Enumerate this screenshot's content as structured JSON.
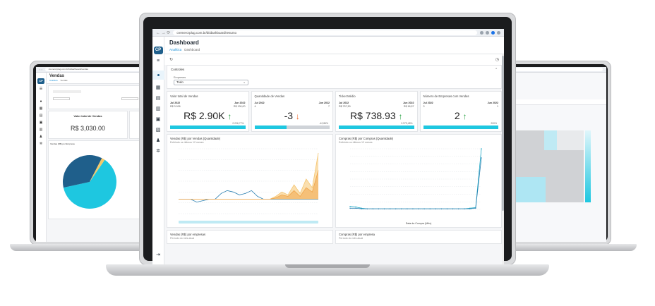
{
  "center": {
    "url": "cremercrplug.com.br/bi/dashboard/resumo",
    "title": "Dashboard",
    "breadcrumb": [
      "Analítica",
      "Dashboard"
    ],
    "logo": "CP",
    "controls_label": "Controles",
    "empresas_label": "Empresas",
    "empresas_value": "Todo",
    "kpis": [
      {
        "title": "Valor total de Vendas",
        "left_period": "Jul 2022",
        "right_period": "Jun 2022",
        "left_value": "R$ 3.026",
        "right_value": "R$ 130,00",
        "value": "R$ 2.90K",
        "trend": "up",
        "pct": "2.226,77%",
        "fill": 1.0
      },
      {
        "title": "Quantidade de Vendas",
        "left_period": "Jul 2022",
        "right_period": "Jun 2022",
        "left_value": "4",
        "right_value": "7",
        "value": "-3",
        "trend": "down",
        "pct": "-42,86%",
        "fill": 0.43
      },
      {
        "title": "Ticket Médio",
        "left_period": "Jul 2022",
        "right_period": "Jun 2022",
        "left_value": "R$ 757,50",
        "right_value": "R$ 18,57",
        "value": "R$ 738.93",
        "trend": "up",
        "pct": "3.979,48%",
        "fill": 1.0
      },
      {
        "title": "Número de Empresas com Vendas",
        "left_period": "Jul 2022",
        "right_period": "Jun 2022",
        "left_value": "3",
        "right_value": "1",
        "value": "2",
        "trend": "up",
        "pct": "200%",
        "fill": 1.0
      }
    ],
    "chart1": {
      "title": "Vendas (R$) por Vendas (Quantidade)",
      "subtitle": "Exibindo os últimos 12 meses"
    },
    "chart2": {
      "title": "Compras (R$) por Compras (Quantidade)",
      "subtitle": "Exibindo os últimos 12 meses",
      "xlabel": "Data da Compra (Mês)"
    },
    "bottom": [
      {
        "title": "Vendas (R$) por empresas",
        "subtitle": "Período do mês atual"
      },
      {
        "title": "Compras (R$) por empresa",
        "subtitle": "Período do mês atual"
      }
    ]
  },
  "left": {
    "url": "cremercrplug.com.br/bi/dashboard/vendas",
    "title": "Vendas",
    "breadcrumb": [
      "Analítica",
      "Vendas"
    ],
    "kpi_title": "Valor total de Vendas",
    "kpi_value": "R$ 3,030.00",
    "chart_title": "Vendas (R$) por Empresa"
  },
  "chart_data": [
    {
      "type": "area",
      "title": "Vendas (R$) por Vendas (Quantidade)",
      "x": [
        1,
        2,
        3,
        4,
        5,
        6,
        7,
        8,
        9,
        10,
        11,
        12,
        13,
        14,
        15,
        16,
        17,
        18,
        19,
        20,
        21,
        22,
        23,
        24
      ],
      "series": [
        {
          "values": [
            0,
            0,
            0,
            -2,
            -1,
            0,
            0,
            4,
            6,
            5,
            3,
            4,
            6,
            2,
            0,
            0,
            0,
            0,
            0,
            0,
            0,
            0,
            0,
            0
          ]
        },
        {
          "values": [
            0,
            0,
            0,
            0,
            0,
            0,
            0,
            0,
            0,
            0,
            0,
            0,
            0,
            0,
            0,
            0,
            2,
            5,
            3,
            10,
            4,
            14,
            8,
            32
          ]
        },
        {
          "values": [
            0,
            0,
            0,
            0,
            0,
            0,
            0,
            0,
            0,
            0,
            0,
            0,
            0,
            0,
            0,
            0,
            1,
            3,
            2,
            6,
            2,
            8,
            5,
            20
          ]
        }
      ],
      "ylim": [
        -10,
        35
      ]
    },
    {
      "type": "line",
      "title": "Compras (R$) por Compras (Quantidade)",
      "xlabel": "Data da Compra (Mês)",
      "x": [
        1,
        2,
        3,
        4,
        5,
        6,
        7,
        8,
        9,
        10,
        11,
        12,
        13,
        14,
        15,
        16,
        17,
        18,
        19,
        20,
        21,
        22,
        23,
        24
      ],
      "series": [
        {
          "values": [
            5,
            4,
            2,
            1,
            1,
            1,
            1,
            1,
            1,
            1,
            1,
            1,
            1,
            1,
            1,
            1,
            1,
            1,
            1,
            1,
            1,
            2,
            3,
            100
          ]
        },
        {
          "values": [
            2,
            2,
            1,
            1,
            1,
            1,
            1,
            1,
            1,
            1,
            1,
            1,
            1,
            1,
            1,
            1,
            1,
            1,
            1,
            1,
            1,
            1,
            2,
            85
          ]
        }
      ],
      "ylim": [
        0,
        100
      ]
    },
    {
      "type": "pie",
      "title": "Vendas (R$) por Empresa",
      "values": [
        62,
        36,
        2
      ],
      "colors": [
        "#1ec7e0",
        "#1f5f8b",
        "#f3c96a"
      ]
    }
  ],
  "colors": {
    "accent": "#1ec7e0",
    "brand": "#1f5f8b",
    "up": "#1f9d3b",
    "down": "#ef6a2c",
    "area": "#f5c46e"
  }
}
